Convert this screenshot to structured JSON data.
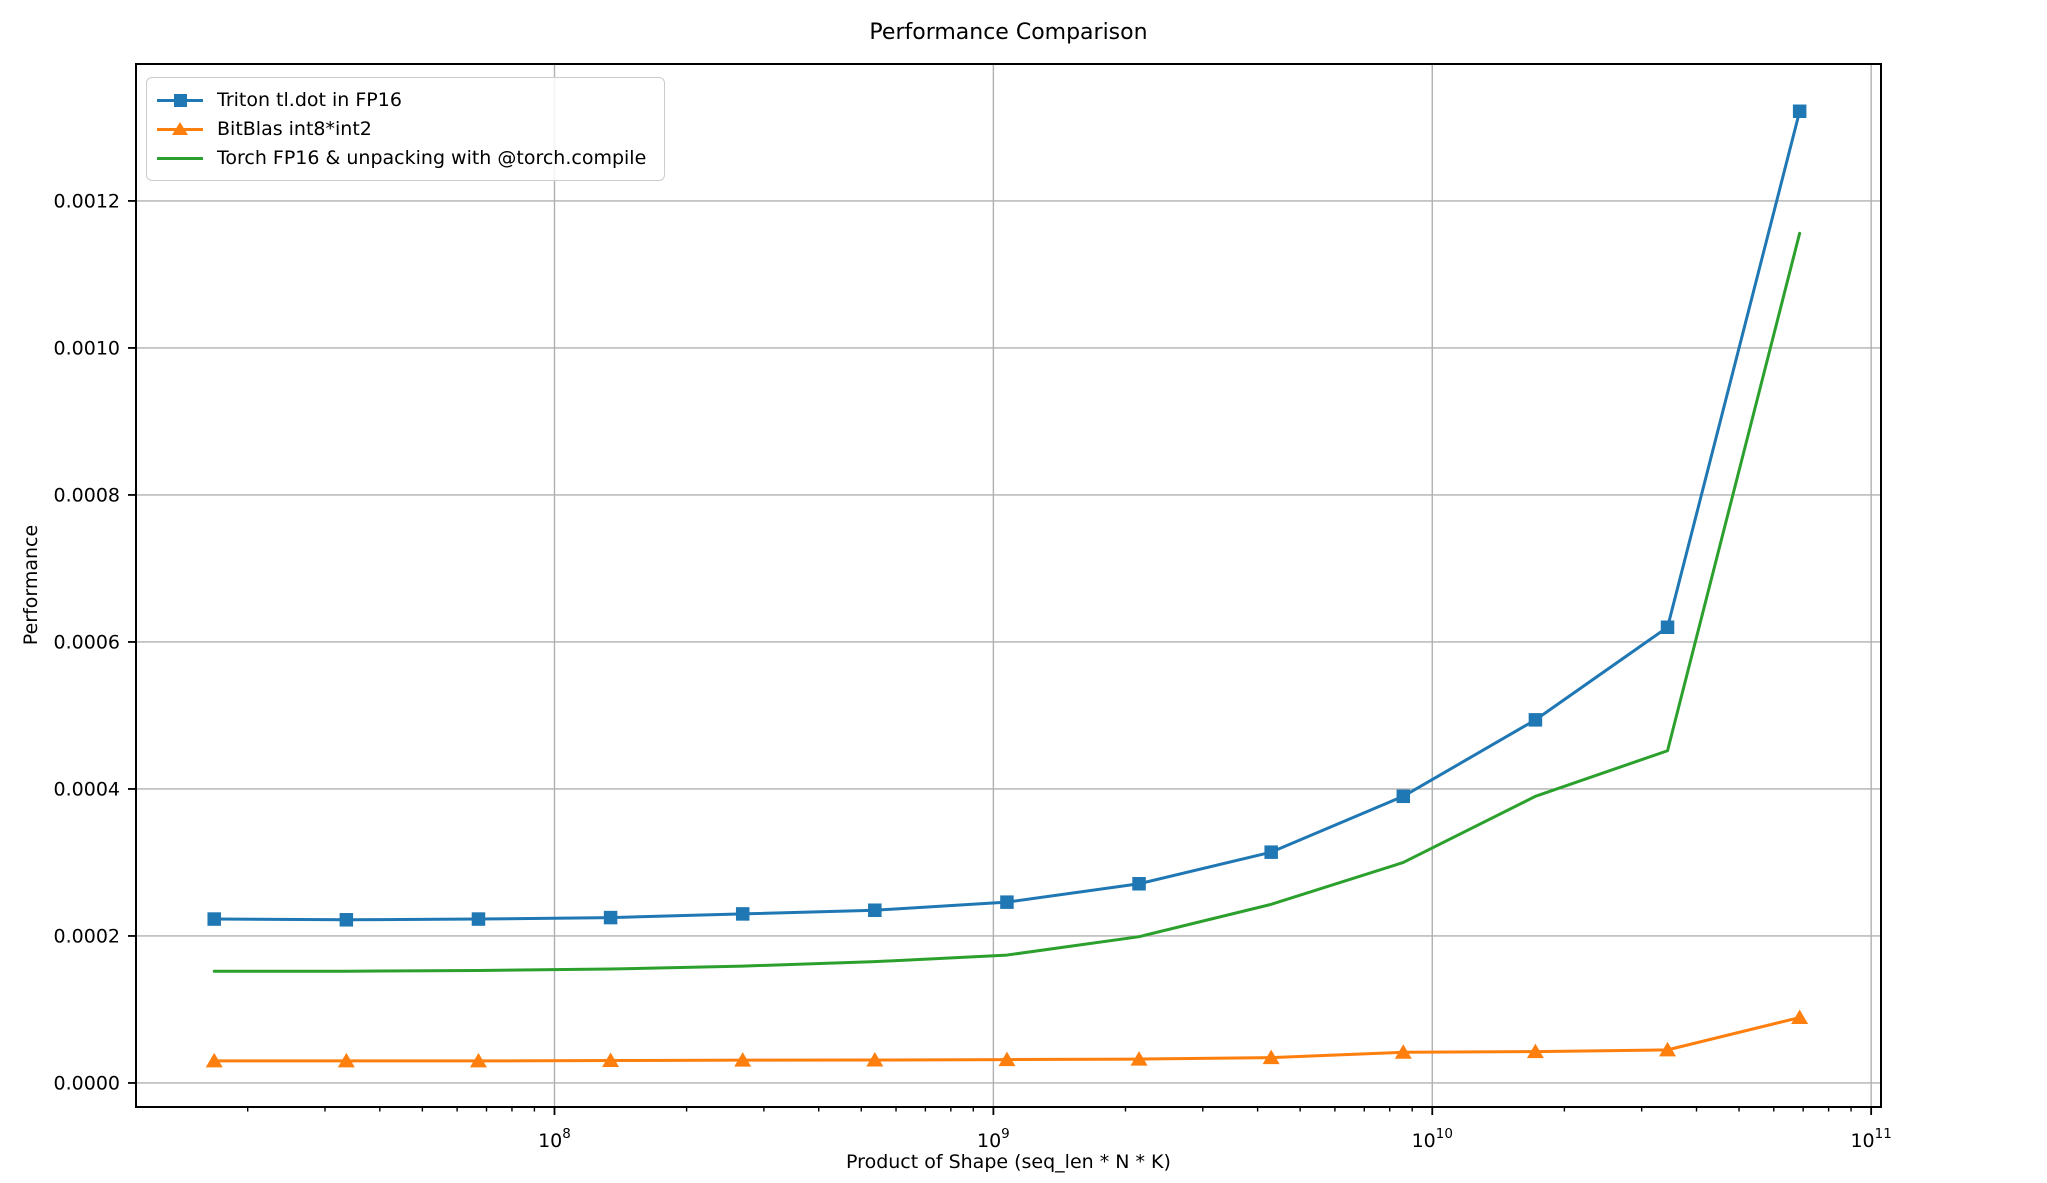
{
  "chart_data": {
    "type": "line",
    "title": "Performance Comparison",
    "xlabel": "Product of Shape (seq_len * N * K)",
    "ylabel": "Performance",
    "x_scale": "log",
    "grid": true,
    "legend_position": "upper left",
    "xlim": [
      11130000,
      105300000000
    ],
    "ylim": [
      -3.27e-05,
      0.0013863
    ],
    "x": [
      16777216,
      33554432,
      67108864,
      134217728,
      268435456,
      536870912,
      1073741824,
      2147483648,
      4294967296,
      8589934592,
      17179869184,
      34359738368,
      68719476736
    ],
    "x_ticks": [
      {
        "value": 100000000,
        "base": "10",
        "exp": "8"
      },
      {
        "value": 1000000000,
        "base": "10",
        "exp": "9"
      },
      {
        "value": 10000000000,
        "base": "10",
        "exp": "10"
      },
      {
        "value": 100000000000,
        "base": "10",
        "exp": "11"
      }
    ],
    "y_ticks": [
      {
        "value": 0.0,
        "label": "0.0000"
      },
      {
        "value": 0.0002,
        "label": "0.0002"
      },
      {
        "value": 0.0004,
        "label": "0.0004"
      },
      {
        "value": 0.0006,
        "label": "0.0006"
      },
      {
        "value": 0.0008,
        "label": "0.0008"
      },
      {
        "value": 0.001,
        "label": "0.0010"
      },
      {
        "value": 0.0012,
        "label": "0.0012"
      }
    ],
    "series": [
      {
        "name": "Triton tl.dot in FP16",
        "color": "#1f77b4",
        "marker": "square",
        "values": [
          0.000223,
          0.000222,
          0.000223,
          0.000225,
          0.00023,
          0.000235,
          0.000246,
          0.000271,
          0.000314,
          0.00039,
          0.000494,
          0.00062,
          0.001322
        ]
      },
      {
        "name": "BitBlas int8*int2",
        "color": "#ff7f0e",
        "marker": "triangle",
        "values": [
          3e-05,
          3e-05,
          3e-05,
          3.05e-05,
          3.1e-05,
          3.12e-05,
          3.18e-05,
          3.25e-05,
          3.45e-05,
          4.18e-05,
          4.27e-05,
          4.5e-05,
          8.9e-05
        ]
      },
      {
        "name": "Torch FP16 & unpacking with @torch.compile",
        "color": "#2ca02c",
        "marker": "none",
        "values": [
          0.000152,
          0.000152,
          0.000153,
          0.000155,
          0.000159,
          0.000165,
          0.000174,
          0.000199,
          0.000243,
          0.0003,
          0.00039,
          0.000452,
          0.001156
        ]
      }
    ],
    "styles": {
      "grid_color": "#b0b0b0",
      "spine_color": "#000000",
      "background": "#ffffff"
    }
  }
}
